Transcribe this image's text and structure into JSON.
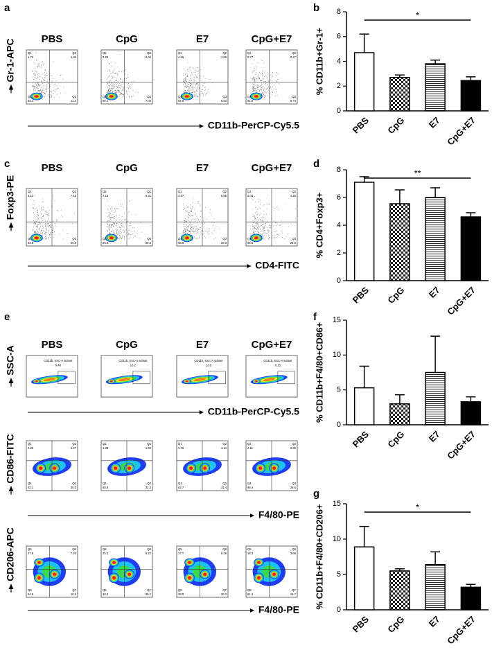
{
  "panel_labels": [
    "a",
    "b",
    "c",
    "d",
    "e",
    "f",
    "g"
  ],
  "flow_groups": [
    "PBS",
    "CpG",
    "E7",
    "CpG+E7"
  ],
  "flow_rows": [
    {
      "y_label": "Gr-1-APC",
      "x_label": "CD11b-PerCP-Cy5.5",
      "plots": [
        {
          "quadrants": [
            {
              "name": "Q1",
              "value": "1.76"
            },
            {
              "name": "Q2",
              "value": "4.65"
            },
            {
              "name": "Q4",
              "value": "83.4"
            },
            {
              "name": "Q3",
              "value": "11.2"
            }
          ]
        },
        {
          "quadrants": [
            {
              "name": "Q1",
              "value": "2.63"
            },
            {
              "name": "Q2",
              "value": "2.04"
            },
            {
              "name": "Q4",
              "value": "86.1"
            },
            {
              "name": "Q3",
              "value": "7.03"
            }
          ]
        },
        {
          "quadrants": [
            {
              "name": "Q1",
              "value": "4.66"
            },
            {
              "name": "Q2",
              "value": "3.66"
            },
            {
              "name": "Q4",
              "value": "84.8"
            },
            {
              "name": "Q3",
              "value": "6.63"
            }
          ]
        },
        {
          "quadrants": [
            {
              "name": "Q1",
              "value": "0.77"
            },
            {
              "name": "Q2",
              "value": "2.47"
            },
            {
              "name": "Q4",
              "value": "91.8"
            },
            {
              "name": "Q3",
              "value": "5.74"
            }
          ]
        }
      ]
    },
    {
      "y_label": "Foxp3-PE",
      "x_label": "CD4-FITC",
      "plots": [
        {
          "quadrants": [
            {
              "name": "Q1",
              "value": "3.13"
            },
            {
              "name": "Q2",
              "value": "7.15"
            },
            {
              "name": "Q4",
              "value": "63.8"
            },
            {
              "name": "Q3",
              "value": "25.9"
            }
          ]
        },
        {
          "quadrants": [
            {
              "name": "Q1",
              "value": "2.13"
            },
            {
              "name": "Q2",
              "value": "9.31"
            },
            {
              "name": "Q4",
              "value": "65.8"
            },
            {
              "name": "Q3",
              "value": "25.5"
            }
          ]
        },
        {
          "quadrants": [
            {
              "name": "Q1",
              "value": "2.67"
            },
            {
              "name": "Q2",
              "value": "6.85"
            },
            {
              "name": "Q4",
              "value": "66.8"
            },
            {
              "name": "Q3",
              "value": "20.3"
            }
          ]
        },
        {
          "quadrants": [
            {
              "name": "Q1",
              "value": "3.44"
            },
            {
              "name": "Q2",
              "value": "4.45"
            },
            {
              "name": "Q4",
              "value": "65.5"
            },
            {
              "name": "Q3",
              "value": "26.6"
            }
          ]
        }
      ]
    },
    {
      "y_label": "SSC-A",
      "x_label": "CD11b-PerCP-Cy5.5",
      "plots": [
        {
          "gate_label": "CD11b, SSC-A subset",
          "gate_value": "6.48"
        },
        {
          "gate_label": "CD11b, SSC-A subset",
          "gate_value": "16.2"
        },
        {
          "gate_label": "CD11b, SSC-A subset",
          "gate_value": "13.6"
        },
        {
          "gate_label": "CD11b, SSC-A subset",
          "gate_value": "8.15"
        }
      ]
    },
    {
      "y_label": "CD86-FITC",
      "x_label": "F4/80-PE",
      "plots": [
        {
          "quadrants": [
            {
              "name": "Q1",
              "value": "2.26"
            },
            {
              "name": "Q2",
              "value": "5.27"
            },
            {
              "name": "Q4",
              "value": "62.1"
            },
            {
              "name": "Q3",
              "value": "30.3"
            }
          ]
        },
        {
          "quadrants": [
            {
              "name": "Q1",
              "value": "1.88"
            },
            {
              "name": "Q2",
              "value": "1.02"
            },
            {
              "name": "Q4",
              "value": "65.9"
            },
            {
              "name": "Q3",
              "value": "31.2"
            }
          ]
        },
        {
          "quadrants": [
            {
              "name": "Q1",
              "value": "1.79"
            },
            {
              "name": "Q2",
              "value": "4.14"
            },
            {
              "name": "Q4",
              "value": "62.7"
            },
            {
              "name": "Q3",
              "value": "31.4"
            }
          ]
        },
        {
          "quadrants": [
            {
              "name": "Q1",
              "value": "2.11"
            },
            {
              "name": "Q2",
              "value": "2.90"
            },
            {
              "name": "Q4",
              "value": "68.4"
            },
            {
              "name": "Q3",
              "value": "26.6"
            }
          ]
        }
      ]
    },
    {
      "y_label": "CD206-APC",
      "x_label": "F4/80-PE",
      "plots": [
        {
          "quadrants": [
            {
              "name": "Q5",
              "value": "27.6"
            },
            {
              "name": "Q6",
              "value": "7.26"
            },
            {
              "name": "Q8",
              "value": "54.6"
            },
            {
              "name": "Q7",
              "value": "10.5"
            }
          ]
        },
        {
          "quadrants": [
            {
              "name": "Q5",
              "value": "25.3"
            },
            {
              "name": "Q6",
              "value": "6.22"
            },
            {
              "name": "Q8",
              "value": "38.3"
            },
            {
              "name": "Q7",
              "value": "30.2"
            }
          ]
        },
        {
          "quadrants": [
            {
              "name": "Q5",
              "value": "27.7"
            },
            {
              "name": "Q6",
              "value": "6.25"
            },
            {
              "name": "Q8",
              "value": "36.9"
            },
            {
              "name": "Q7",
              "value": "30.0"
            }
          ]
        },
        {
          "quadrants": [
            {
              "name": "Q5",
              "value": "18.3"
            },
            {
              "name": "Q6",
              "value": "3.66"
            },
            {
              "name": "Q8",
              "value": "61.4"
            },
            {
              "name": "Q7",
              "value": "16.7"
            }
          ]
        }
      ]
    }
  ],
  "chart_data": [
    {
      "type": "bar",
      "y_label": "% CD11b+Gr-1+",
      "categories": [
        "PBS",
        "CpG",
        "E7",
        "CpG+E7"
      ],
      "values": [
        4.7,
        2.7,
        3.8,
        2.45
      ],
      "errors": [
        1.5,
        0.2,
        0.3,
        0.3
      ],
      "fills": [
        "white",
        "checker",
        "stripes",
        "black"
      ],
      "color": "#000000",
      "ylim": [
        0,
        8
      ],
      "yticks": [
        0,
        2,
        4,
        6,
        8
      ],
      "significance": "*"
    },
    {
      "type": "bar",
      "y_label": "% CD4+Foxp3+",
      "categories": [
        "PBS",
        "CpG",
        "E7",
        "CpG+E7"
      ],
      "values": [
        7.1,
        5.55,
        6.0,
        4.6
      ],
      "errors": [
        0.4,
        1.0,
        0.7,
        0.3
      ],
      "fills": [
        "white",
        "checker",
        "stripes",
        "black"
      ],
      "color": "#000000",
      "ylim": [
        0,
        8
      ],
      "yticks": [
        0,
        2,
        4,
        6,
        8
      ],
      "significance": "**"
    },
    {
      "type": "bar",
      "y_label": "% CD11b+F4/80+CD86+",
      "categories": [
        "PBS",
        "CpG",
        "E7",
        "CpG+E7"
      ],
      "values": [
        5.3,
        3.0,
        7.5,
        3.3
      ],
      "errors": [
        3.1,
        1.3,
        5.2,
        0.7
      ],
      "fills": [
        "white",
        "checker",
        "stripes",
        "black"
      ],
      "color": "#000000",
      "ylim": [
        0,
        15
      ],
      "yticks": [
        0,
        5,
        10,
        15
      ]
    },
    {
      "type": "bar",
      "y_label": "% CD11b+F4/80+CD206+",
      "categories": [
        "PBS",
        "CpG",
        "E7",
        "CpG+E7"
      ],
      "values": [
        8.9,
        5.5,
        6.4,
        3.2
      ],
      "errors": [
        2.9,
        0.3,
        1.8,
        0.4
      ],
      "fills": [
        "white",
        "checker",
        "stripes",
        "black"
      ],
      "color": "#000000",
      "ylim": [
        0,
        15
      ],
      "yticks": [
        0,
        5,
        10,
        15
      ],
      "significance": "*"
    }
  ]
}
